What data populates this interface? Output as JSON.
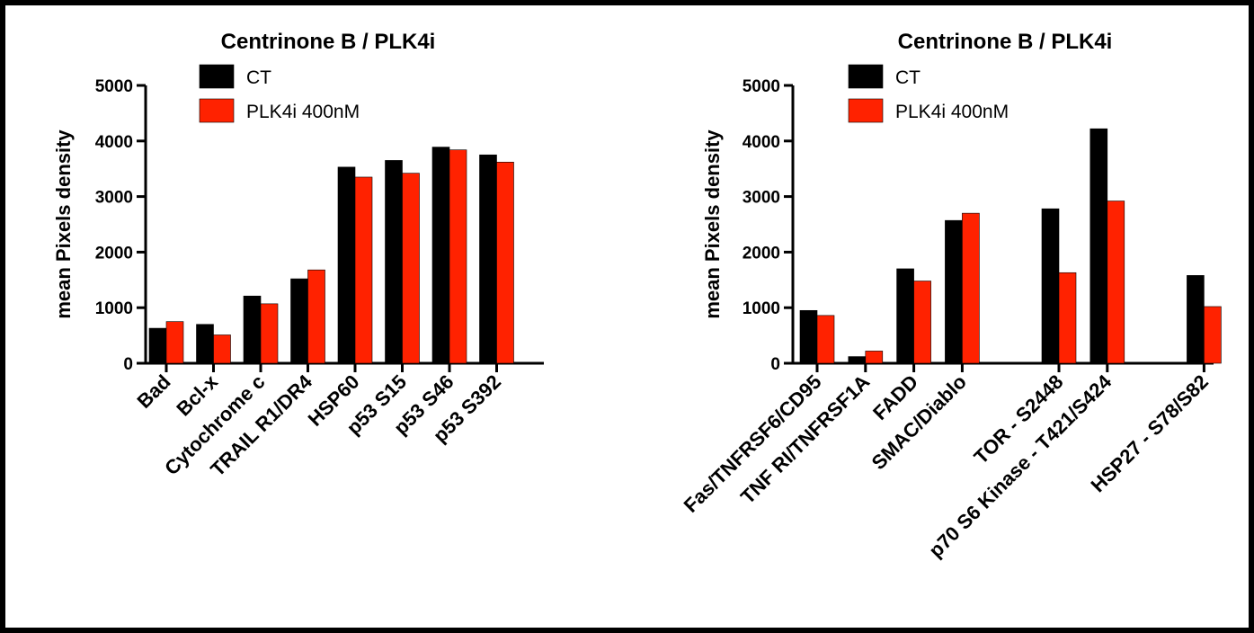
{
  "chart_data": [
    {
      "type": "bar",
      "title": "Centrinone B / PLK4i",
      "xlabel": "",
      "ylabel": "mean Pixels density",
      "ylim": [
        0,
        5000
      ],
      "yticks": [
        0,
        1000,
        2000,
        3000,
        4000,
        5000
      ],
      "categories": [
        "Bad",
        "Bcl-x",
        "Cytochrome c",
        "TRAIL R1/DR4",
        "HSP60",
        "p53 S15",
        "p53 S46",
        "p53 S392"
      ],
      "series": [
        {
          "name": "CT",
          "color": "#000000",
          "values": [
            630,
            700,
            1210,
            1520,
            3530,
            3650,
            3890,
            3750
          ]
        },
        {
          "name": "PLK4i 400nM",
          "color": "#ff2200",
          "values": [
            750,
            510,
            1070,
            1680,
            3350,
            3420,
            3840,
            3620
          ]
        }
      ],
      "legend": "top-left",
      "grid": false
    },
    {
      "type": "bar",
      "title": "Centrinone B / PLK4i",
      "xlabel": "",
      "ylabel": "mean Pixels density",
      "ylim": [
        0,
        5000
      ],
      "yticks": [
        0,
        1000,
        2000,
        3000,
        4000,
        5000
      ],
      "categories": [
        "Fas/TNFRSF6/CD95",
        "TNF RI/TNFRSF1A",
        "FADD",
        "SMAC/Diablo",
        "",
        "TOR - S2448",
        "p70 S6 Kinase - T421/S424",
        "",
        "HSP27 - S78/S82"
      ],
      "series": [
        {
          "name": "CT",
          "color": "#000000",
          "values": [
            950,
            120,
            1700,
            2570,
            null,
            2780,
            4220,
            null,
            1580
          ]
        },
        {
          "name": "PLK4i 400nM",
          "color": "#ff2200",
          "values": [
            860,
            220,
            1480,
            2700,
            null,
            1630,
            2920,
            null,
            1020
          ]
        }
      ],
      "legend": "top-left",
      "grid": false
    }
  ]
}
